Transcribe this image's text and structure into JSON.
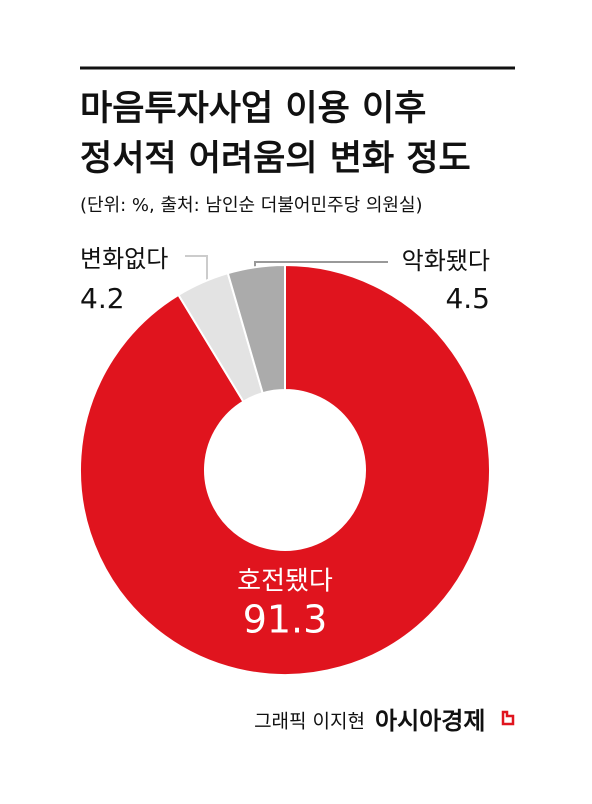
{
  "chart_data": {
    "type": "donut",
    "title": [
      "마음투자사업 이용 이후",
      "정서적 어려움의 변화 정도"
    ],
    "subtitle": "(단위: %, 출처: 남인순 더불어민주당 의원실)",
    "categories": [
      "호전됐다",
      "변화없다",
      "악화됐다"
    ],
    "values": [
      91.3,
      4.2,
      4.5
    ],
    "colors": [
      "#e0141e",
      "#e3e3e3",
      "#ababab"
    ],
    "credit": "그래픽 이지현",
    "brand": "아시아경제"
  }
}
